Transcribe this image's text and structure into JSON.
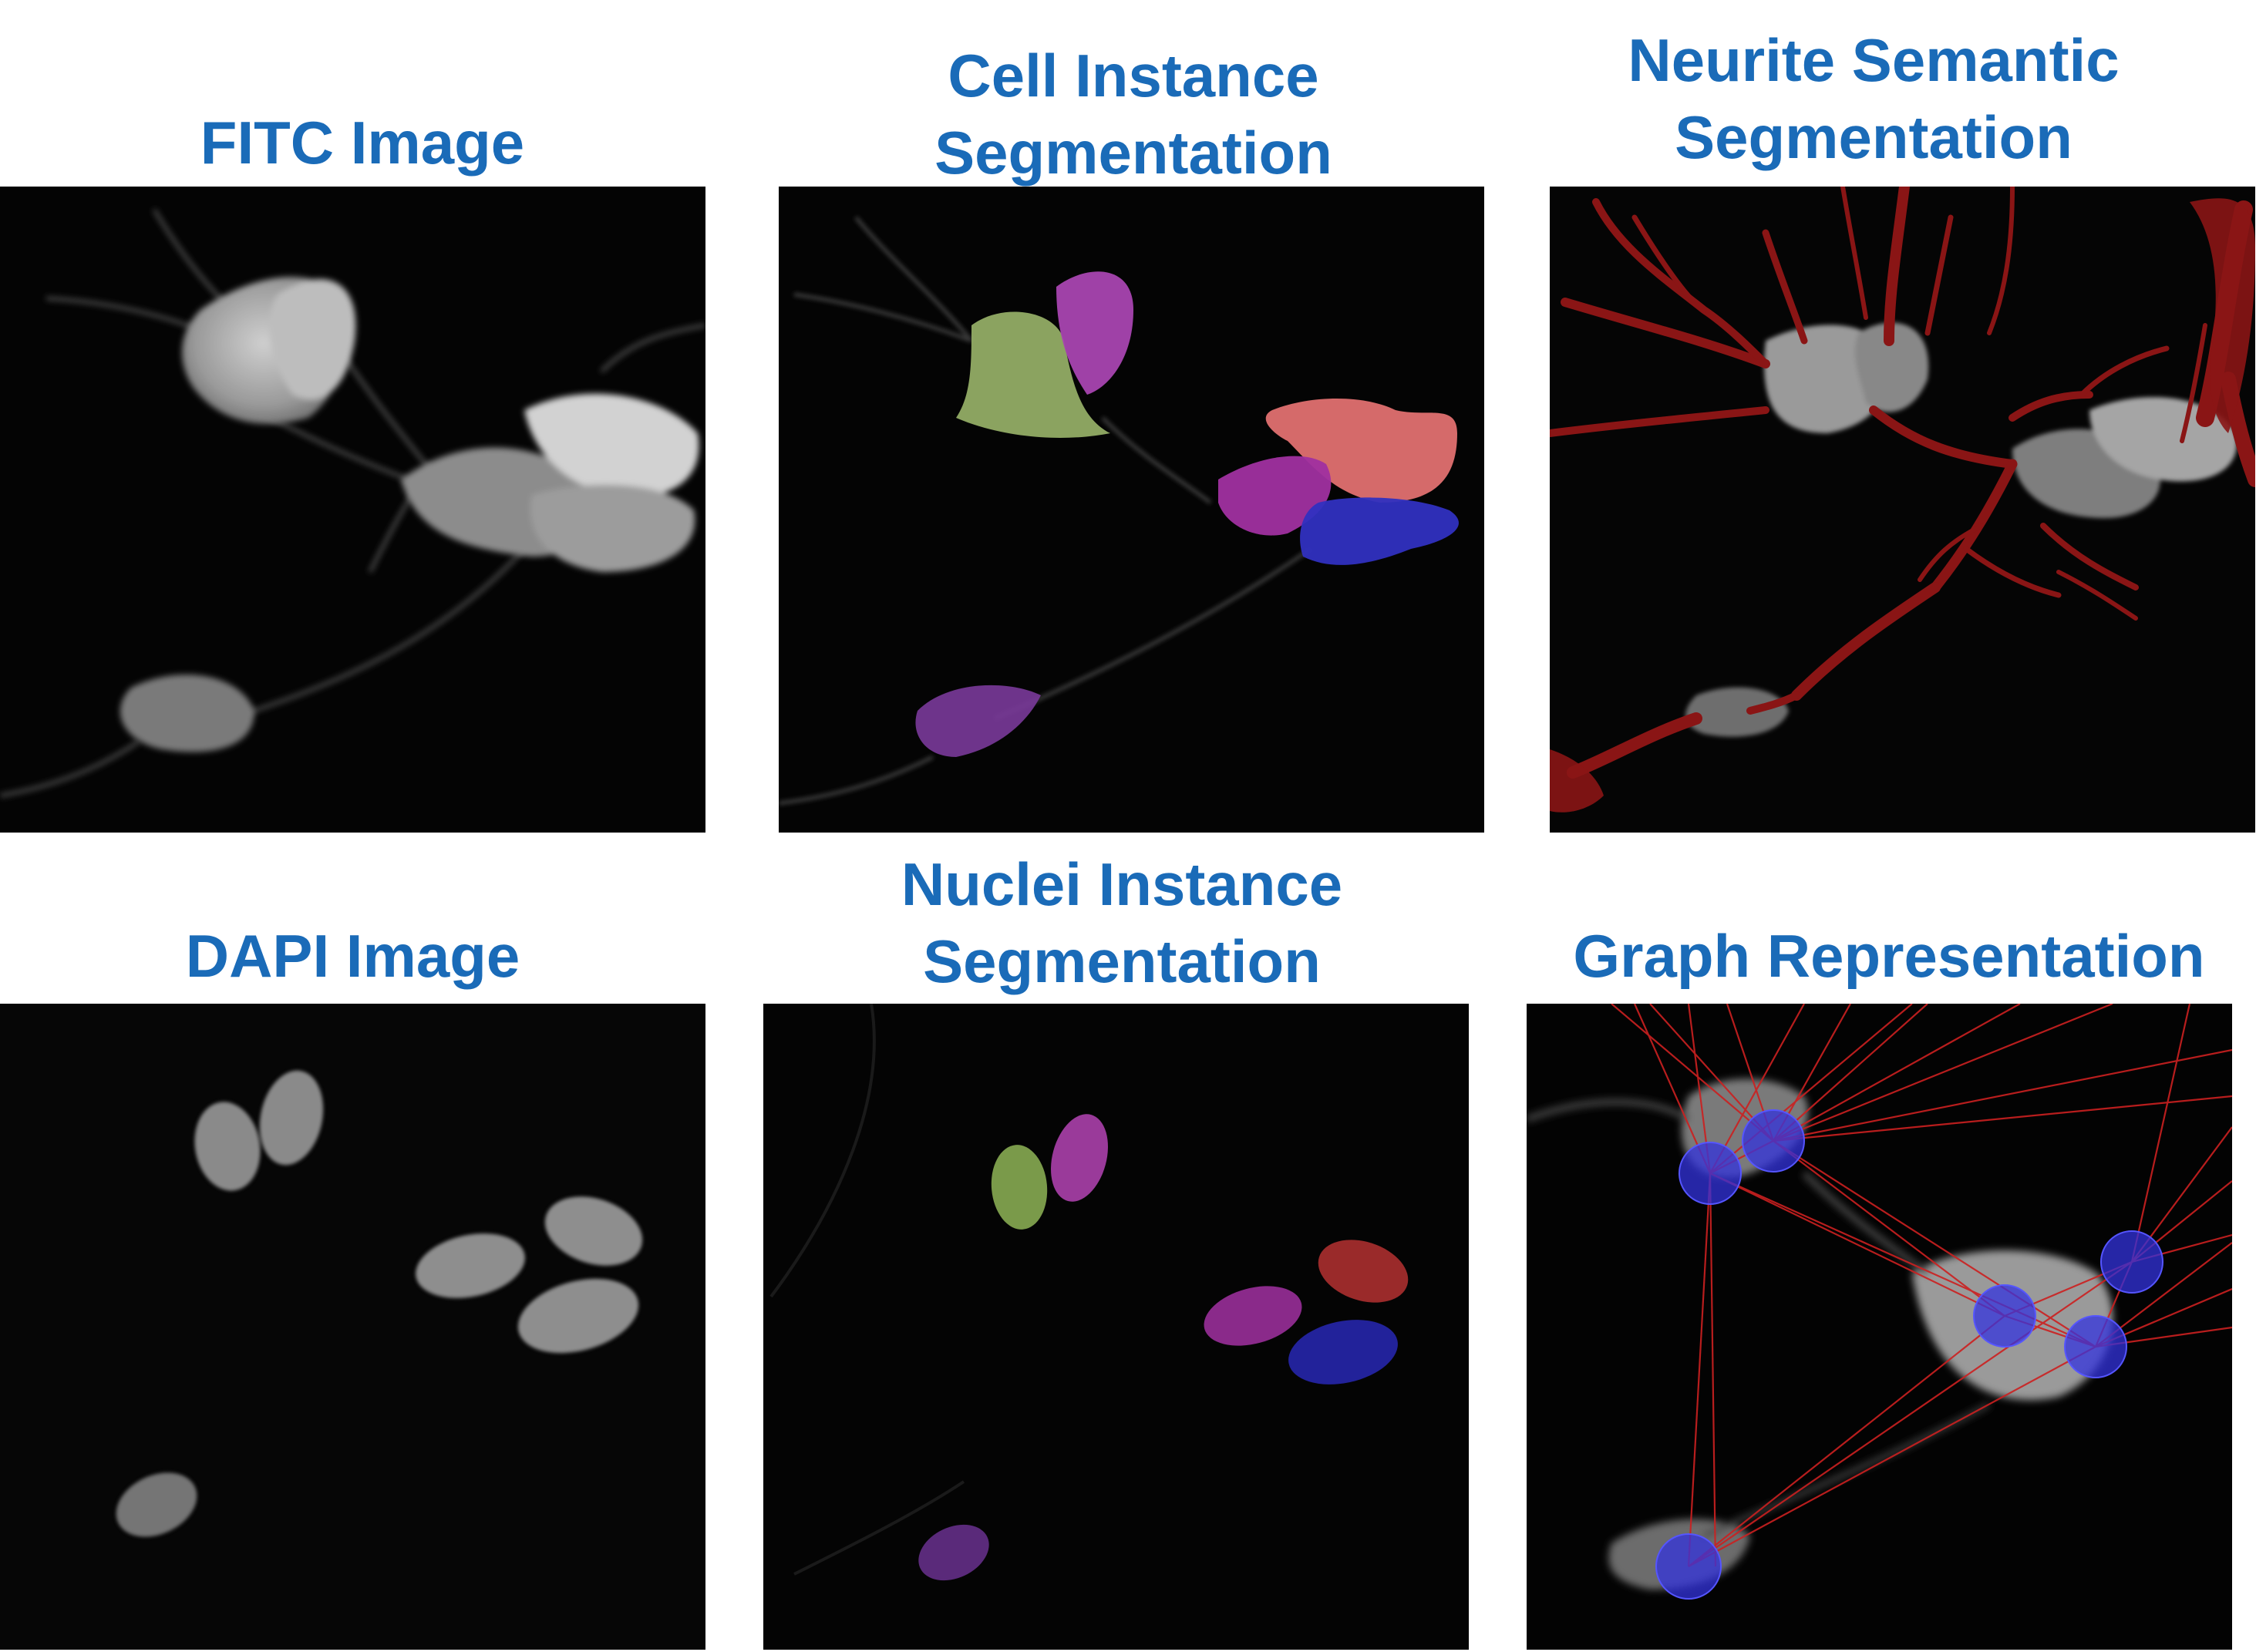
{
  "panels": {
    "fitc": {
      "title": "FITC Image"
    },
    "cell_instance": {
      "title": "Cell Instance\nSegmentation"
    },
    "neurite_semantic": {
      "title": "Neurite Semantic\nSegmentation"
    },
    "dapi": {
      "title": "DAPI Image"
    },
    "nuclei_instance": {
      "title": "Nuclei Instance\nSegmentation"
    },
    "graph": {
      "title": "Graph Representation"
    }
  },
  "colors": {
    "title_text": "#1a6bb8",
    "cell_gray": "#a8a8a8",
    "nucleus_gray": "#8a8a8a",
    "segment_green": "#9ab56a",
    "segment_magenta": "#b040b0",
    "segment_red": "#e07070",
    "segment_purple": "#a030a0",
    "segment_blue": "#3030c0",
    "segment_violet": "#7a3a9a",
    "neurite_red": "#8a1515",
    "graph_node_blue": "#3333dd",
    "graph_edge_red": "#cc2020"
  }
}
